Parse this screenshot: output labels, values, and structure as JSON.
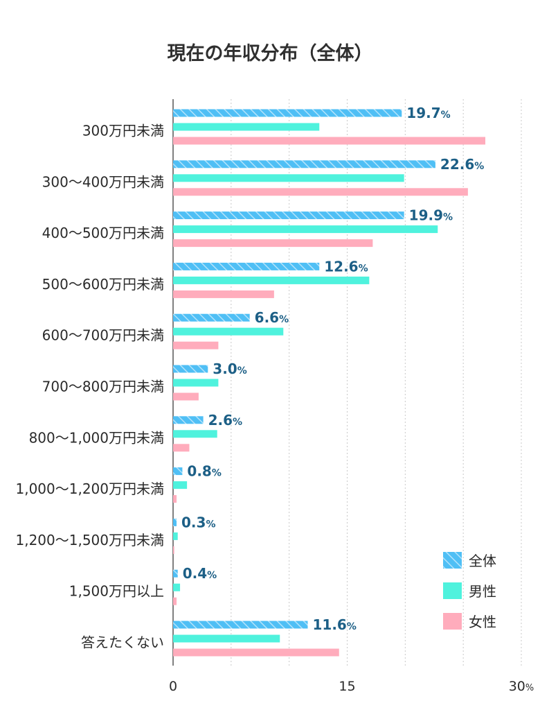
{
  "chart_data": {
    "type": "bar",
    "orientation": "horizontal",
    "title": "現在の年収分布（全体）",
    "categories": [
      "300万円未満",
      "300〜400万円未満",
      "400〜500万円未満",
      "500〜600万円未満",
      "600〜700万円未満",
      "700〜800万円未満",
      "800〜1,000万円未満",
      "1,000〜1,200万円未満",
      "1,200〜1,500万円未満",
      "1,500万円以上",
      "答えたくない"
    ],
    "series": [
      {
        "name": "全体",
        "values": [
          19.7,
          22.6,
          19.9,
          12.6,
          6.6,
          3.0,
          2.6,
          0.8,
          0.3,
          0.4,
          11.6
        ],
        "value_labels": [
          "19.7",
          "22.6",
          "19.9",
          "12.6",
          "6.6",
          "3.0",
          "2.6",
          "0.8",
          "0.3",
          "0.4",
          "11.6"
        ],
        "color": "#4fbff5",
        "pattern": "hatched"
      },
      {
        "name": "男性",
        "values": [
          12.6,
          19.9,
          22.8,
          16.9,
          9.5,
          3.9,
          3.8,
          1.2,
          0.4,
          0.6,
          9.2
        ],
        "color": "#4ff2dd"
      },
      {
        "name": "女性",
        "values": [
          26.9,
          25.4,
          17.2,
          8.7,
          3.9,
          2.2,
          1.4,
          0.3,
          0.1,
          0.3,
          14.3
        ],
        "color": "#ffacbc"
      }
    ],
    "value_suffix": "%",
    "xlim": [
      0,
      30
    ],
    "x_ticks": [
      "0",
      "15",
      "30"
    ],
    "x_tick_suffix": "%",
    "grid": "vertical dotted",
    "legend_position": "bottom-right"
  }
}
